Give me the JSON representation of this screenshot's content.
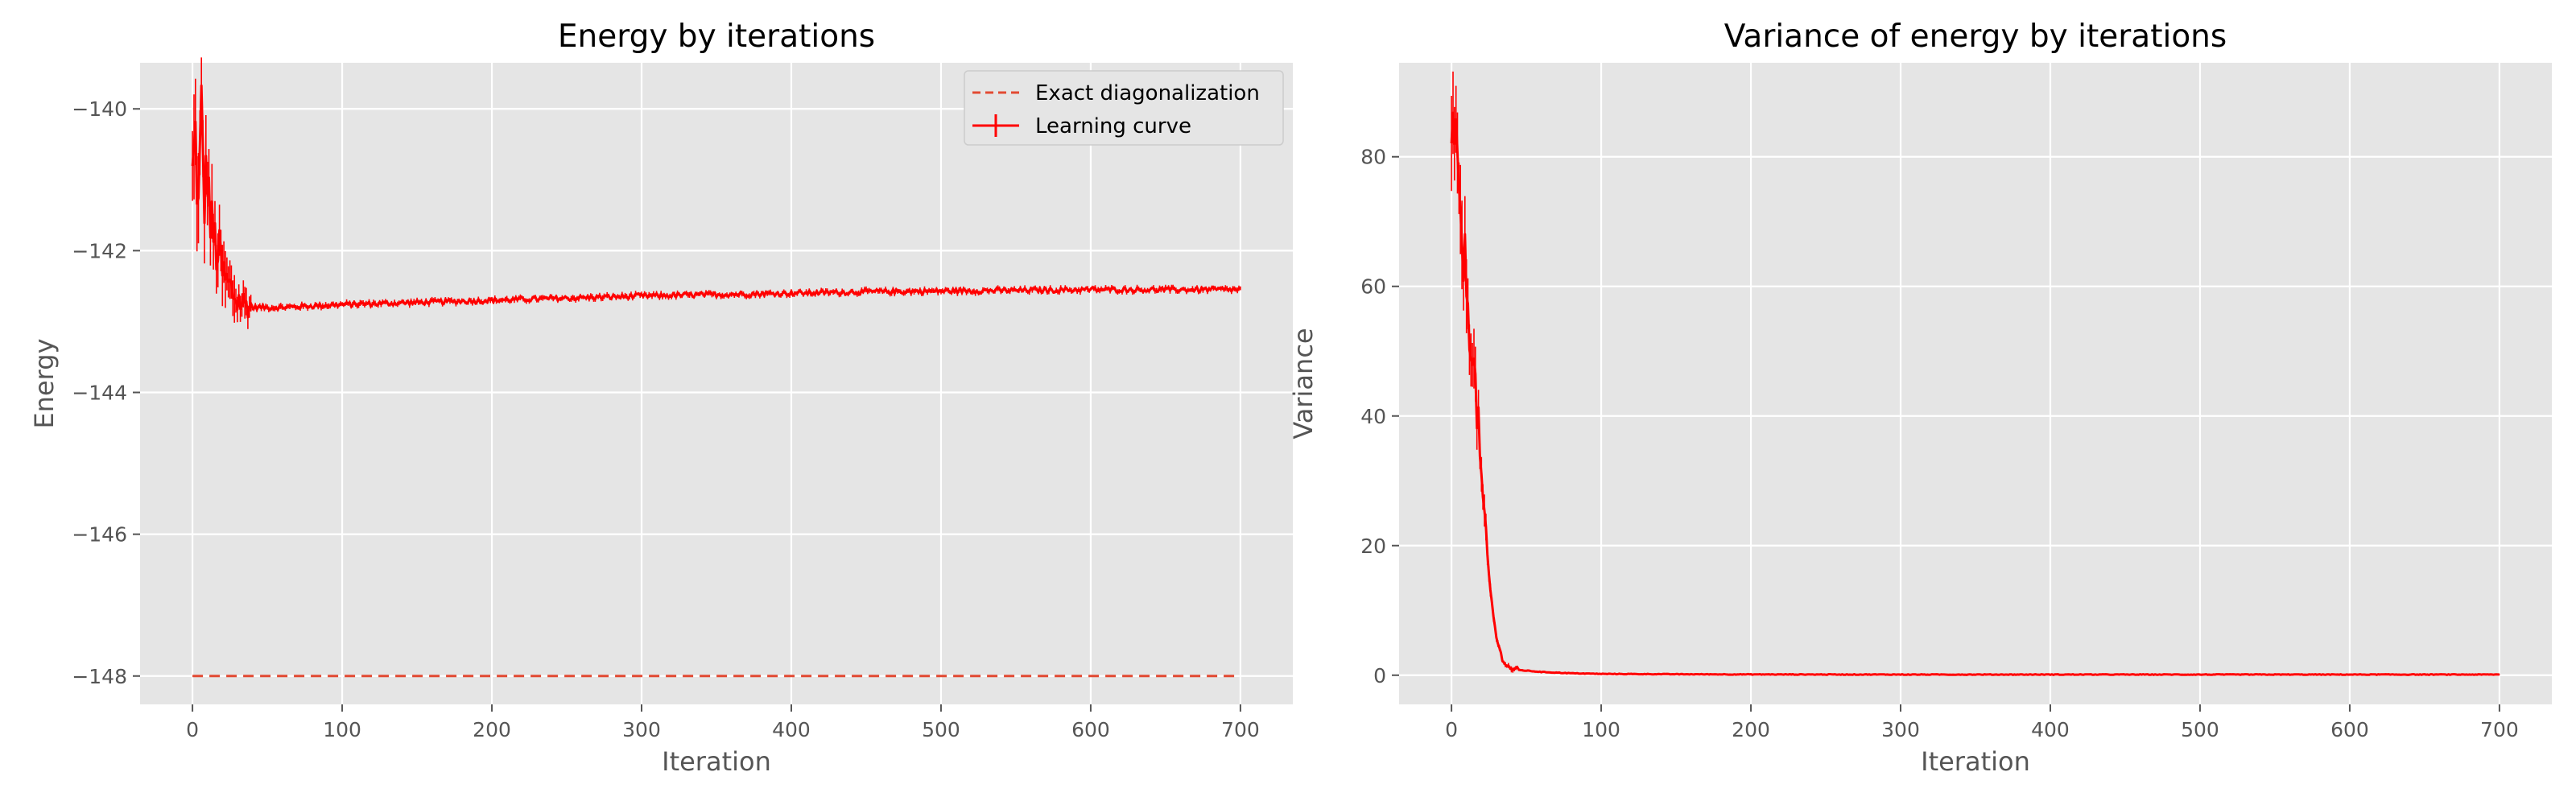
{
  "colors": {
    "figure_bg": "#ffffff",
    "axes_bg": "#e5e5e5",
    "grid": "#ffffff",
    "tick_text": "#555555",
    "learning_curve": "#ff0000",
    "exact_line": "#e24a33"
  },
  "chart_data": [
    {
      "type": "line",
      "title": "Energy by iterations",
      "xlabel": "Iteration",
      "ylabel": "Energy",
      "xlim": [
        -35,
        735
      ],
      "ylim": [
        -148.4,
        -139.35
      ],
      "xticks": [
        0,
        100,
        200,
        300,
        400,
        500,
        600,
        700
      ],
      "yticks": [
        -148,
        -146,
        -144,
        -142,
        -140
      ],
      "ytick_labels": [
        "−148",
        "−146",
        "−144",
        "−142",
        "−140"
      ],
      "grid": true,
      "legend": {
        "placement": "top-right",
        "entries": [
          "Exact diagonalization",
          "Learning curve"
        ]
      },
      "series": [
        {
          "name": "Exact diagonalization",
          "style": "dashed",
          "x": [
            0,
            700
          ],
          "y": [
            -148.0,
            -148.0
          ]
        },
        {
          "name": "Learning curve",
          "style": "solid-errorbar",
          "x": [
            0,
            2,
            4,
            6,
            8,
            10,
            12,
            15,
            18,
            21,
            24,
            27,
            30,
            35,
            40,
            50,
            60,
            80,
            100,
            150,
            200,
            250,
            300,
            350,
            400,
            450,
            500,
            550,
            600,
            650,
            700
          ],
          "y": [
            -141.0,
            -140.4,
            -141.5,
            -140.0,
            -141.3,
            -140.8,
            -141.6,
            -141.9,
            -142.1,
            -142.4,
            -142.5,
            -142.6,
            -142.7,
            -142.75,
            -142.8,
            -142.8,
            -142.8,
            -142.78,
            -142.76,
            -142.73,
            -142.7,
            -142.67,
            -142.64,
            -142.62,
            -142.6,
            -142.58,
            -142.57,
            -142.56,
            -142.55,
            -142.55,
            -142.55
          ]
        }
      ]
    },
    {
      "type": "line",
      "title": "Variance of energy by iterations",
      "xlabel": "Iteration",
      "ylabel": "Variance",
      "xlim": [
        -35,
        735
      ],
      "ylim": [
        -4.5,
        94.5
      ],
      "xticks": [
        0,
        100,
        200,
        300,
        400,
        500,
        600,
        700
      ],
      "yticks": [
        0,
        20,
        40,
        60,
        80
      ],
      "ytick_labels": [
        "0",
        "20",
        "40",
        "60",
        "80"
      ],
      "grid": true,
      "series": [
        {
          "style": "solid-errorbar",
          "x": [
            0,
            2,
            4,
            6,
            8,
            10,
            12,
            14,
            16,
            18,
            20,
            22,
            24,
            26,
            28,
            30,
            32,
            34,
            36,
            38,
            40,
            45,
            50,
            60,
            80,
            100,
            150,
            200,
            300,
            400,
            500,
            600,
            700
          ],
          "y": [
            78,
            86,
            74,
            70,
            66,
            60,
            55,
            50,
            44,
            38,
            30,
            24,
            18,
            13,
            9,
            6,
            4,
            2.6,
            1.8,
            1.3,
            1.0,
            0.8,
            0.7,
            0.5,
            0.3,
            0.2,
            0.15,
            0.12,
            0.1,
            0.1,
            0.1,
            0.1,
            0.1
          ]
        }
      ]
    }
  ]
}
